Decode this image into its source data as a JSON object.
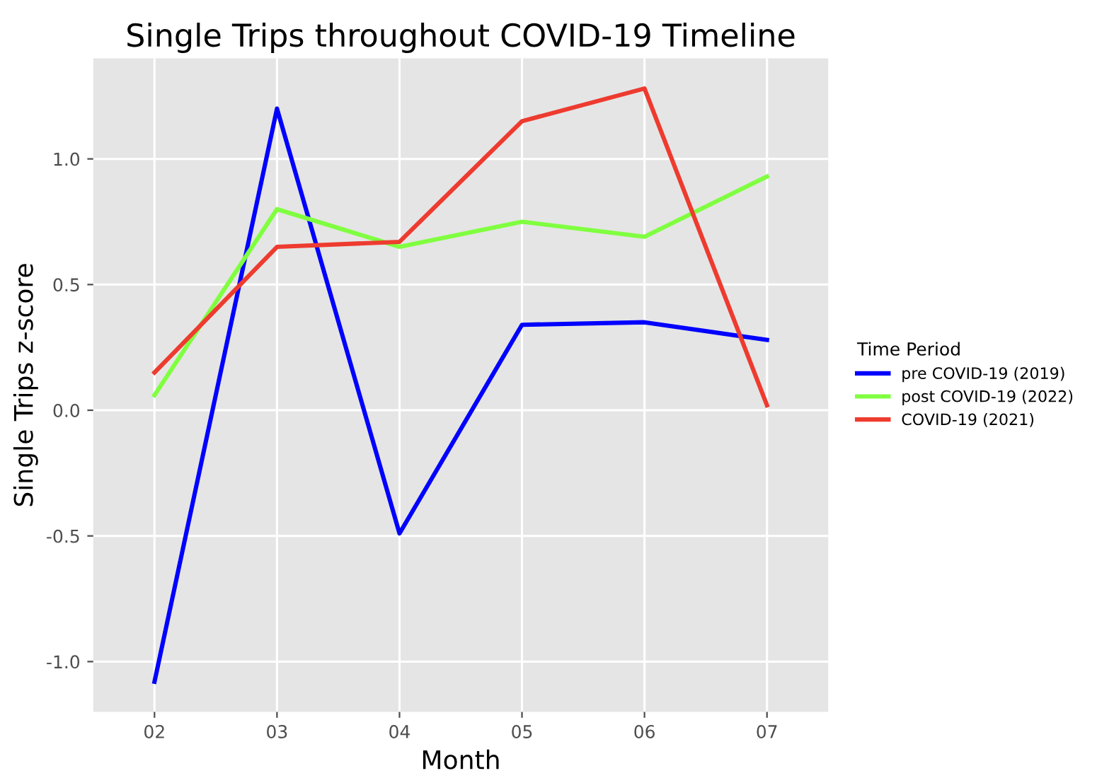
{
  "chart_data": {
    "type": "line",
    "title": "Single Trips throughout COVID-19 Timeline",
    "xlabel": "Month",
    "ylabel": "Single Trips z-score",
    "legend_title": "Time Period",
    "categories": [
      "02",
      "03",
      "04",
      "05",
      "06",
      "07"
    ],
    "series": [
      {
        "name": "pre COVID-19 (2019)",
        "color": "#0000ff",
        "values": [
          -1.08,
          1.2,
          -0.49,
          0.34,
          0.35,
          0.28
        ]
      },
      {
        "name": "post COVID-19 (2022)",
        "color": "#80ff40",
        "values": [
          0.06,
          0.8,
          0.65,
          0.75,
          0.69,
          0.93
        ]
      },
      {
        "name": "COVID-19 (2021)",
        "color": "#ee3b2f",
        "values": [
          0.15,
          0.65,
          0.67,
          1.15,
          1.28,
          0.02
        ]
      }
    ],
    "ylim": [
      -1.2,
      1.4
    ],
    "yticks": [
      {
        "value": -1.0,
        "label": "-1.0"
      },
      {
        "value": -0.5,
        "label": "-0.5"
      },
      {
        "value": 0.0,
        "label": "0.0"
      },
      {
        "value": 0.5,
        "label": "0.5"
      },
      {
        "value": 1.0,
        "label": "1.0"
      }
    ],
    "grid": true,
    "legend": "right",
    "marker": "none",
    "line_style": "solid"
  }
}
